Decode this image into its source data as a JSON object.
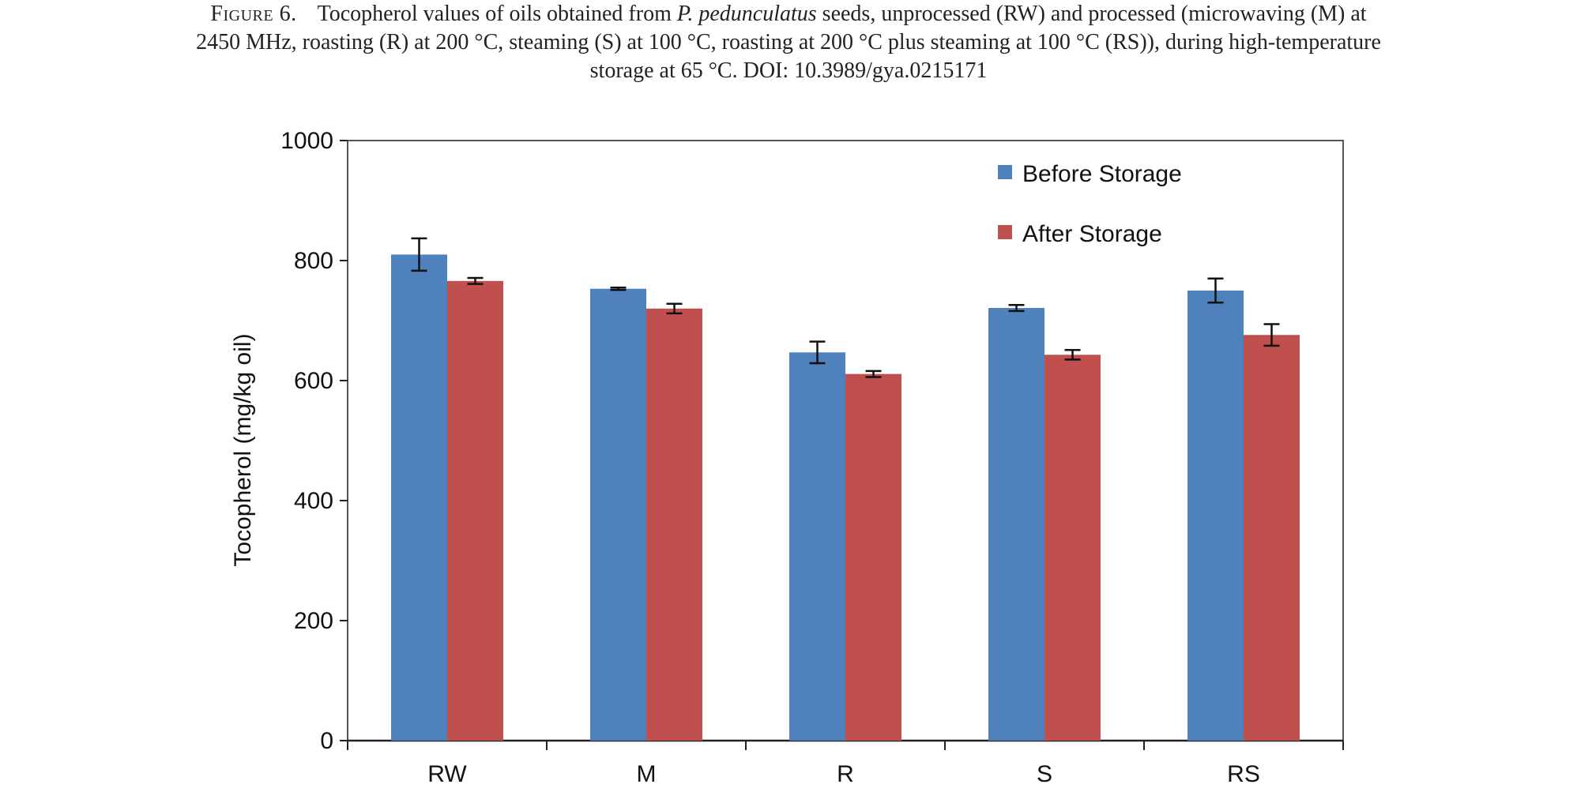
{
  "caption": {
    "label": "Figure 6.",
    "text_before_italic": "Tocopherol values of oils obtained from ",
    "italic": "P. pedunculatus",
    "text_line1_end": " seeds, unprocessed (RW) and processed (microwaving (M) at",
    "line2": "2450 MHz, roasting (R) at 200 °C, steaming (S) at 100 °C, roasting at 200 °C plus steaming at 100 °C (RS)), during high-temperature",
    "line3": "storage at 65 °C. DOI: 10.3989/gya.0215171"
  },
  "chart_data": {
    "type": "bar",
    "title": "",
    "xlabel": "",
    "ylabel": "Tocopherol (mg/kg oil)",
    "categories": [
      "RW",
      "M",
      "R",
      "S",
      "RS"
    ],
    "ylim": [
      0,
      1000
    ],
    "yticks": [
      0,
      200,
      400,
      600,
      800,
      1000
    ],
    "grid": false,
    "legend_position": "top-right",
    "series": [
      {
        "name": "Before Storage",
        "color": "#4F81BD",
        "values": [
          810,
          753,
          647,
          721,
          750
        ],
        "errors": [
          27,
          2,
          18,
          5,
          20
        ]
      },
      {
        "name": "After Storage",
        "color": "#C0504D",
        "values": [
          766,
          720,
          611,
          643,
          676
        ],
        "errors": [
          5,
          8,
          5,
          8,
          18
        ]
      }
    ]
  }
}
